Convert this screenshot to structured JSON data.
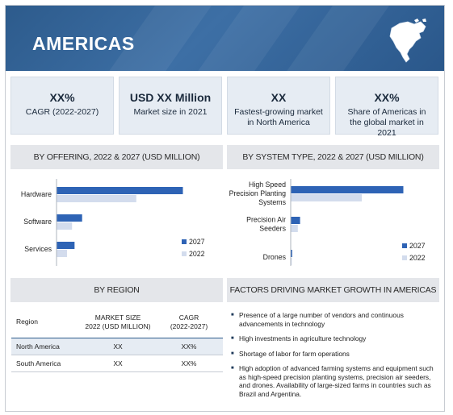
{
  "banner": {
    "title": "AMERICAS",
    "icon": "north-america-map-icon"
  },
  "kpis": [
    {
      "value": "XX%",
      "label": "CAGR (2022-2027)"
    },
    {
      "value": "USD XX Million",
      "label": "Market size in 2021"
    },
    {
      "value": "XX",
      "label": "Fastest-growing market in North America"
    },
    {
      "value": "XX%",
      "label": "Share of Americas in the global market in 2021"
    }
  ],
  "sections": {
    "offering": "BY OFFERING, 2022 & 2027 (USD MILLION)",
    "system": "BY SYSTEM TYPE, 2022 & 2027 (USD MILLION)",
    "region": "BY REGION",
    "factors": "FACTORS DRIVING MARKET GROWTH IN AMERICAS"
  },
  "colors": {
    "banner": "#2d5b8c",
    "series_2027": "#2e63b5",
    "series_2022": "#d3dced",
    "kpi_bg": "#e6ecf3"
  },
  "chart_data": [
    {
      "type": "bar",
      "orientation": "horizontal",
      "title": "BY OFFERING, 2022 & 2027 (USD MILLION)",
      "categories": [
        "Hardware",
        "Software",
        "Services"
      ],
      "series": [
        {
          "name": "2027",
          "values": [
            100,
            20,
            14
          ]
        },
        {
          "name": "2022",
          "values": [
            63,
            12,
            8
          ]
        }
      ],
      "xlim": [
        0,
        100
      ],
      "legend": "bottom-right",
      "grid": false
    },
    {
      "type": "bar",
      "orientation": "horizontal",
      "title": "BY SYSTEM TYPE, 2022 & 2027 (USD MILLION)",
      "categories": [
        "High Speed Precision Planting Systems",
        "Precision Air Seeders",
        "Drones"
      ],
      "category_lines": [
        [
          "High Speed",
          "Precision Planting",
          "Systems"
        ],
        [
          "Precision Air",
          "Seeders"
        ],
        [
          "Drones"
        ]
      ],
      "series": [
        {
          "name": "2027",
          "values": [
            100,
            8,
            1
          ]
        },
        {
          "name": "2022",
          "values": [
            63,
            6,
            0.5
          ]
        }
      ],
      "xlim": [
        0,
        100
      ],
      "legend": "bottom-right",
      "grid": false
    }
  ],
  "region_table": {
    "headers": [
      "Region",
      "MARKET SIZE 2022 (USD MILLION)",
      "CAGR (2022-2027)"
    ],
    "header_lines": [
      [
        "Region"
      ],
      [
        "MARKET SIZE",
        "2022 (USD MILLION)"
      ],
      [
        "CAGR",
        "(2022-2027)"
      ]
    ],
    "rows": [
      [
        "North America",
        "XX",
        "XX%"
      ],
      [
        "South America",
        "XX",
        "XX%"
      ]
    ]
  },
  "factors": [
    "Presence of a large number of vendors and continuous advancements in technology",
    "High investments in agriculture technology",
    "Shortage of labor for farm operations",
    "High adoption of advanced farming systems and equipment such as high-speed precision planting systems, precision air seeders, and drones. Availability of large-sized farms in countries such as Brazil and Argentina."
  ]
}
